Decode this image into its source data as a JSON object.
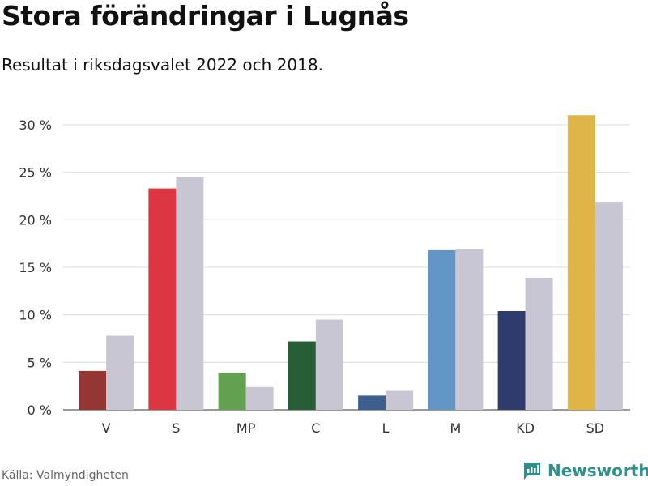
{
  "title": "Stora förändringar i Lugnås",
  "subtitle": "Resultat i riksdagsvalet 2022 och 2018.",
  "source": "Källa: Valmyndigheten",
  "brand": {
    "name": "Newsworthy",
    "icon": "newsworthy-logo-icon",
    "color": "#2f8f8a"
  },
  "chart_data": {
    "type": "bar",
    "categories": [
      "V",
      "S",
      "MP",
      "C",
      "L",
      "M",
      "KD",
      "SD"
    ],
    "series": [
      {
        "values": [
          4.1,
          23.3,
          3.9,
          7.2,
          1.5,
          16.8,
          10.4,
          31.0
        ],
        "colors": [
          "#943634",
          "#dc3640",
          "#62a14f",
          "#275e36",
          "#3c5f8e",
          "#6196c6",
          "#2f3b6c",
          "#deb546"
        ]
      },
      {
        "values": [
          7.8,
          24.5,
          2.4,
          9.5,
          2.0,
          16.9,
          13.9,
          21.9
        ],
        "color": "#c8c6d3"
      }
    ],
    "ylim": [
      0,
      30
    ],
    "yticks": [
      0,
      5,
      10,
      15,
      20,
      25,
      30
    ],
    "ytick_labels": [
      "0 %",
      "5 %",
      "10 %",
      "15 %",
      "20 %",
      "25 %",
      "30 %"
    ],
    "grid": true,
    "xlabel": "",
    "ylabel": ""
  }
}
